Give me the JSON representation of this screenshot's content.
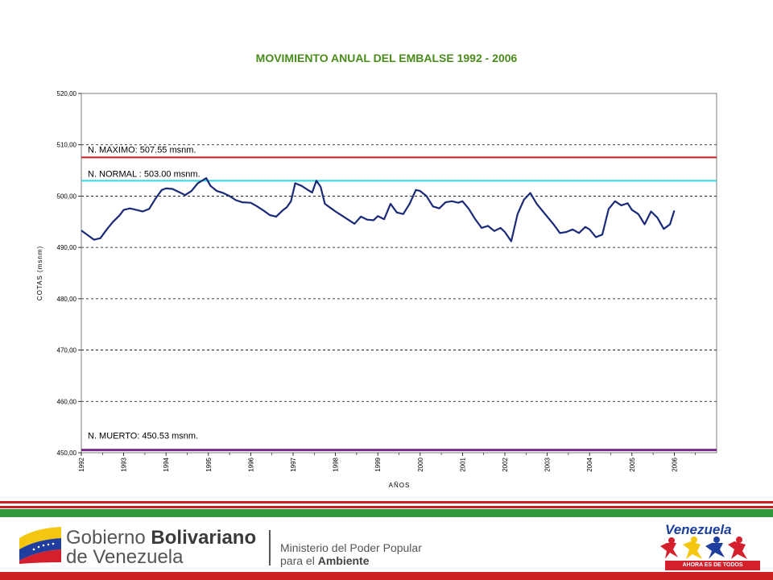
{
  "chart_data": {
    "type": "line",
    "title": "MOVIMIENTO ANUAL DEL EMBALSE 1992 - 2006",
    "xlabel": "AÑOS",
    "ylabel": "COTAS (msnm)",
    "xlim": [
      1992,
      2007
    ],
    "ylim": [
      450,
      520
    ],
    "y_ticks": [
      "450,00",
      "460,00",
      "470,00",
      "480,00",
      "490,00",
      "500,00",
      "510,00",
      "520,00"
    ],
    "y_tick_values": [
      450,
      460,
      470,
      480,
      490,
      500,
      510,
      520
    ],
    "x_ticks": [
      "1992",
      "1993",
      "1994",
      "1995",
      "1996",
      "1997",
      "1998",
      "1999",
      "2000",
      "2001",
      "2002",
      "2003",
      "2004",
      "2005",
      "2006"
    ],
    "x_tick_values": [
      1992,
      1993,
      1994,
      1995,
      1996,
      1997,
      1998,
      1999,
      2000,
      2001,
      2002,
      2003,
      2004,
      2005,
      2006
    ],
    "grid": "horizontal-dashed",
    "reference_lines": [
      {
        "label": "N. MAXIMO: 507.55 msnm.",
        "value": 507.55,
        "color": "#c0202a"
      },
      {
        "label": "N. NORMAL : 503.00 msnm.",
        "value": 503.0,
        "color": "#33d6e0"
      },
      {
        "label": "N. MUERTO: 450.53 msnm.",
        "value": 450.53,
        "color": "#7a2a8a"
      }
    ],
    "series": [
      {
        "color": "#1a2a78",
        "x": [
          1992.0,
          1992.15,
          1992.3,
          1992.45,
          1992.6,
          1992.75,
          1992.9,
          1993.0,
          1993.15,
          1993.3,
          1993.45,
          1993.6,
          1993.75,
          1993.9,
          1994.0,
          1994.15,
          1994.3,
          1994.45,
          1994.6,
          1994.75,
          1994.85,
          1994.95,
          1995.05,
          1995.2,
          1995.35,
          1995.5,
          1995.65,
          1995.8,
          1996.0,
          1996.15,
          1996.3,
          1996.45,
          1996.6,
          1996.75,
          1996.85,
          1996.95,
          1997.05,
          1997.2,
          1997.35,
          1997.45,
          1997.55,
          1997.65,
          1997.75,
          1997.9,
          1998.0,
          1998.15,
          1998.3,
          1998.45,
          1998.6,
          1998.75,
          1998.9,
          1999.0,
          1999.15,
          1999.3,
          1999.45,
          1999.6,
          1999.75,
          1999.9,
          2000.0,
          2000.15,
          2000.3,
          2000.45,
          2000.6,
          2000.75,
          2000.9,
          2001.0,
          2001.15,
          2001.3,
          2001.45,
          2001.6,
          2001.75,
          2001.9,
          2002.0,
          2002.15,
          2002.3,
          2002.45,
          2002.6,
          2002.75,
          2002.9,
          2003.0,
          2003.15,
          2003.3,
          2003.45,
          2003.6,
          2003.75,
          2003.9,
          2004.0,
          2004.15,
          2004.3,
          2004.45,
          2004.6,
          2004.75,
          2004.9,
          2005.0,
          2005.15,
          2005.3,
          2005.45,
          2005.6,
          2005.75,
          2005.9,
          2006.0
        ],
        "values": [
          493.3,
          492.4,
          491.5,
          491.8,
          493.5,
          495.0,
          496.2,
          497.3,
          497.6,
          497.3,
          497.0,
          497.5,
          499.5,
          501.2,
          501.5,
          501.4,
          500.8,
          500.2,
          501.0,
          502.5,
          503.0,
          503.5,
          502.0,
          501.0,
          500.6,
          500.0,
          499.2,
          498.8,
          498.7,
          498.0,
          497.2,
          496.3,
          496.0,
          497.2,
          497.8,
          499.0,
          502.5,
          502.0,
          501.2,
          500.7,
          503.0,
          501.8,
          498.5,
          497.6,
          497.0,
          496.2,
          495.4,
          494.6,
          496.0,
          495.4,
          495.3,
          496.1,
          495.5,
          498.5,
          496.8,
          496.5,
          498.5,
          501.2,
          501.0,
          500.0,
          498.0,
          497.6,
          498.8,
          499.0,
          498.7,
          499.0,
          497.5,
          495.5,
          493.8,
          494.2,
          493.2,
          493.8,
          493.0,
          491.2,
          496.5,
          499.3,
          500.6,
          498.5,
          497.0,
          496.0,
          494.5,
          492.8,
          493.0,
          493.5,
          492.8,
          494.0,
          493.5,
          492.0,
          492.5,
          497.5,
          499.0,
          498.2,
          498.6,
          497.3,
          496.5,
          494.5,
          497.0,
          495.8,
          493.6,
          494.5,
          497.2
        ]
      }
    ]
  },
  "footer": {
    "gov_line1_a": "Gobierno ",
    "gov_line1_b": "Bolivariano",
    "gov_line2": "de Venezuela",
    "ministry_line1": "Ministerio del Poder Popular",
    "ministry_line2_a": "para el ",
    "ministry_line2_b": "Ambiente",
    "country_logo_text": "Venezuela",
    "slogan": "AHORA ES DE TODOS"
  }
}
